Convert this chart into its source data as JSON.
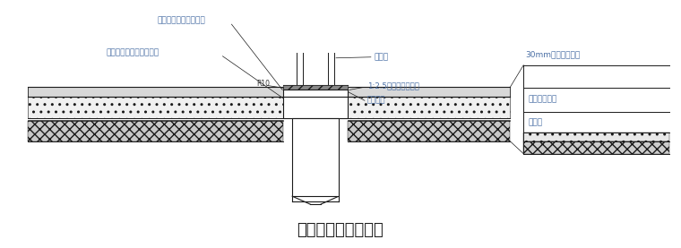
{
  "title": "桩顶防水做法示意图",
  "title_fontsize": 13,
  "bg_color": "#ffffff",
  "line_color": "#1a1a1a",
  "label_color": "#4a6fa5",
  "dark_gray": "#555555",
  "labels": {
    "top_left": "复合防水泥砂浆保护层",
    "mid_left": "水泥基渗透结晶防水涂料",
    "r10": "R10",
    "pile_rebar": "桩钢筋",
    "ratio": "1:2.5水泥砂浆保护层",
    "pile_top": "桩顶标高",
    "right_top": "30mm细石砼保护层",
    "right_mid1": "丁基橡胶垫材",
    "right_mid2": "地基层"
  },
  "fig_width": 7.6,
  "fig_height": 2.77,
  "dpi": 100,
  "font_name": "SimSun"
}
